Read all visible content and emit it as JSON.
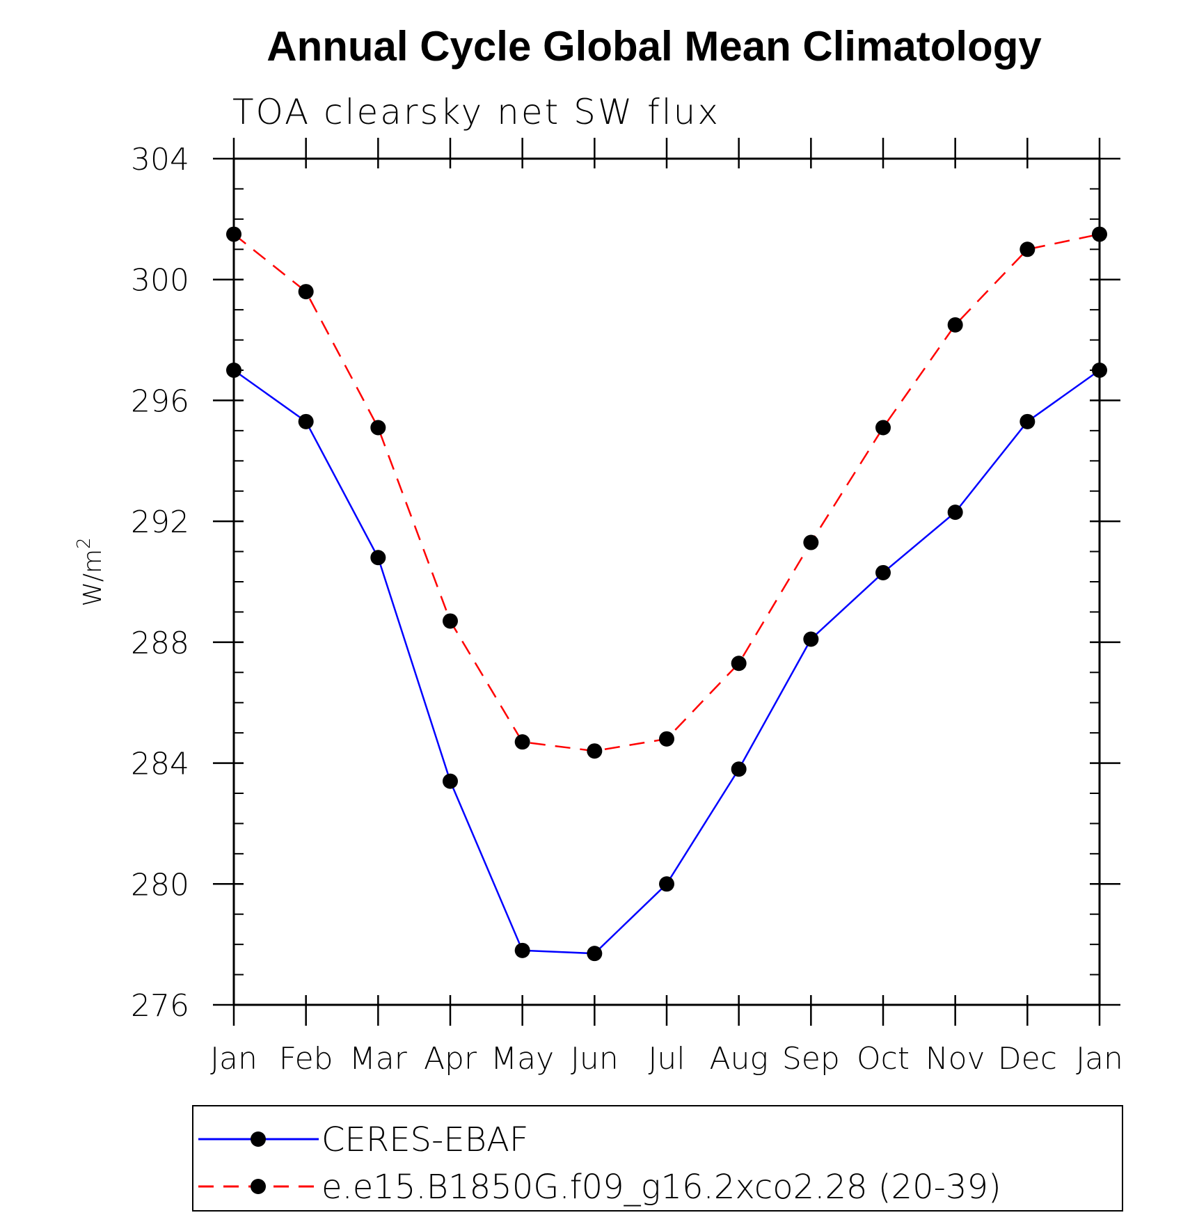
{
  "chart_data": {
    "type": "line",
    "title": "Annual Cycle Global Mean Climatology",
    "subtitle": "TOA clearsky net SW flux",
    "ylabel": "W/m",
    "ylabel_superscript": "2",
    "xlabel": "",
    "categories": [
      "Jan",
      "Feb",
      "Mar",
      "Apr",
      "May",
      "Jun",
      "Jul",
      "Aug",
      "Sep",
      "Oct",
      "Nov",
      "Dec",
      "Jan"
    ],
    "ylim": [
      276,
      304
    ],
    "yticks": [
      276,
      280,
      284,
      288,
      292,
      296,
      300,
      304
    ],
    "ytick_labels": [
      "276",
      "280",
      "284",
      "288",
      "292",
      "296",
      "300",
      "304"
    ],
    "grid": false,
    "legend_position": "bottom",
    "series": [
      {
        "name": "CERES-EBAF",
        "color": "#0000ff",
        "line_style": "solid",
        "marker": "filled-circle",
        "marker_color": "#000000",
        "values": [
          297.0,
          295.3,
          290.8,
          283.4,
          277.8,
          277.7,
          280.0,
          283.8,
          288.1,
          290.3,
          292.3,
          295.3,
          297.0
        ]
      },
      {
        "name": "e.e15.B1850G.f09_g16.2xco2.28 (20-39)",
        "color": "#ff0000",
        "line_style": "dashed",
        "marker": "filled-circle",
        "marker_color": "#000000",
        "values": [
          301.5,
          299.6,
          295.1,
          288.7,
          284.7,
          284.4,
          284.8,
          287.3,
          291.3,
          295.1,
          298.5,
          301.0,
          301.5
        ]
      }
    ]
  }
}
